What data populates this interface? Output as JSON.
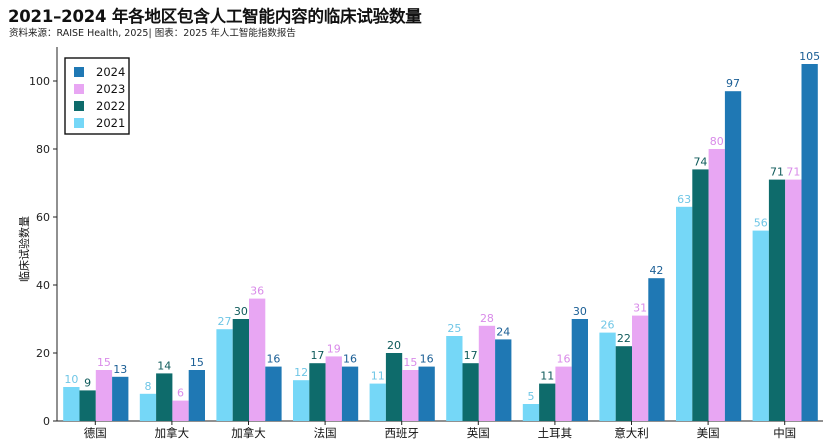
{
  "title": "2021–2024 年各地区包含人工智能内容的临床试验数量",
  "source": "资料来源：RAISE Health, 2025| 图表：2025 年人工智能指数报告",
  "chart_data": {
    "type": "bar",
    "ylabel": "临床试验数量",
    "xlabel": "",
    "ylim": [
      0,
      110
    ],
    "yticks": [
      0,
      20,
      40,
      60,
      80,
      100
    ],
    "grid": false,
    "legend_position": "top-left",
    "categories": [
      "德国",
      "加拿大",
      "加拿大",
      "法国",
      "西班牙",
      "英国",
      "土耳其",
      "意大利",
      "美国",
      "中国"
    ],
    "series": [
      {
        "name": "2021",
        "color": "#75D7F7",
        "label_color": "#6FC6E6",
        "values": [
          10,
          8,
          27,
          12,
          11,
          25,
          5,
          26,
          63,
          56
        ]
      },
      {
        "name": "2022",
        "color": "#0E6B6B",
        "label_color": "#0E5A5A",
        "values": [
          9,
          14,
          30,
          17,
          20,
          17,
          11,
          22,
          74,
          71
        ]
      },
      {
        "name": "2023",
        "color": "#E8A6F3",
        "label_color": "#D98BE9",
        "values": [
          15,
          6,
          36,
          19,
          15,
          28,
          16,
          31,
          80,
          71
        ]
      },
      {
        "name": "2024",
        "color": "#1F78B4",
        "label_color": "#1A5E95",
        "values": [
          13,
          15,
          16,
          16,
          16,
          24,
          30,
          42,
          97,
          105
        ]
      }
    ],
    "legend_order": [
      "2024",
      "2023",
      "2022",
      "2021"
    ]
  }
}
